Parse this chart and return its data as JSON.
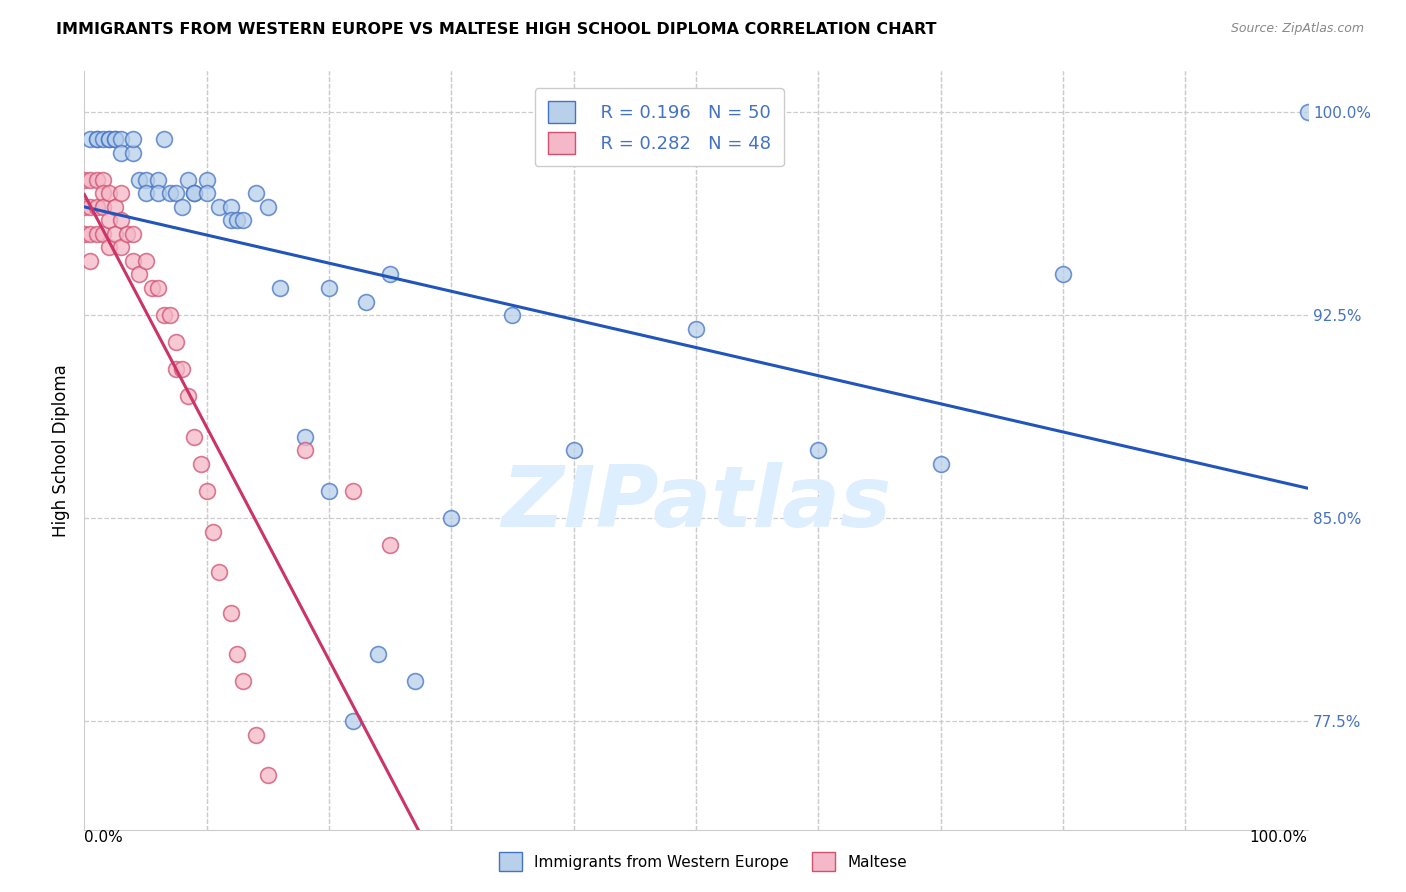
{
  "title": "IMMIGRANTS FROM WESTERN EUROPE VS MALTESE HIGH SCHOOL DIPLOMA CORRELATION CHART",
  "source": "Source: ZipAtlas.com",
  "ylabel": "High School Diploma",
  "xlim": [
    0.0,
    1.0
  ],
  "ylim": [
    0.735,
    1.015
  ],
  "ytick_vals": [
    0.775,
    0.85,
    0.925,
    1.0
  ],
  "ytick_labels": [
    "77.5%",
    "85.0%",
    "92.5%",
    "100.0%"
  ],
  "legend_blue_r": "R = 0.196",
  "legend_blue_n": "N = 50",
  "legend_pink_r": "R = 0.282",
  "legend_pink_n": "N = 48",
  "legend_blue_label": "Immigrants from Western Europe",
  "legend_pink_label": "Maltese",
  "blue_face_color": "#b8d0ea",
  "blue_edge_color": "#4472c4",
  "pink_face_color": "#f4b8c8",
  "pink_edge_color": "#d05070",
  "blue_trend_color": "#2255bb",
  "pink_trend_color": "#cc3366",
  "watermark_color": "#ddeeff",
  "blue_x": [
    0.005,
    0.01,
    0.01,
    0.015,
    0.02,
    0.02,
    0.025,
    0.025,
    0.03,
    0.03,
    0.04,
    0.04,
    0.045,
    0.05,
    0.05,
    0.06,
    0.06,
    0.065,
    0.07,
    0.075,
    0.08,
    0.085,
    0.09,
    0.09,
    0.1,
    0.1,
    0.11,
    0.12,
    0.12,
    0.125,
    0.13,
    0.14,
    0.15,
    0.16,
    0.18,
    0.2,
    0.2,
    0.22,
    0.23,
    0.24,
    0.25,
    0.27,
    0.3,
    0.35,
    0.4,
    0.5,
    0.6,
    0.7,
    0.8,
    1.0
  ],
  "blue_y": [
    0.99,
    0.99,
    0.99,
    0.99,
    0.99,
    0.99,
    0.99,
    0.99,
    0.99,
    0.985,
    0.985,
    0.99,
    0.975,
    0.975,
    0.97,
    0.975,
    0.97,
    0.99,
    0.97,
    0.97,
    0.965,
    0.975,
    0.97,
    0.97,
    0.975,
    0.97,
    0.965,
    0.965,
    0.96,
    0.96,
    0.96,
    0.97,
    0.965,
    0.935,
    0.88,
    0.86,
    0.935,
    0.775,
    0.93,
    0.8,
    0.94,
    0.79,
    0.85,
    0.925,
    0.875,
    0.92,
    0.875,
    0.87,
    0.94,
    1.0
  ],
  "pink_x": [
    0.0,
    0.0,
    0.0,
    0.005,
    0.005,
    0.005,
    0.005,
    0.01,
    0.01,
    0.01,
    0.015,
    0.015,
    0.015,
    0.015,
    0.02,
    0.02,
    0.02,
    0.025,
    0.025,
    0.03,
    0.03,
    0.03,
    0.035,
    0.04,
    0.04,
    0.045,
    0.05,
    0.055,
    0.06,
    0.065,
    0.07,
    0.075,
    0.075,
    0.08,
    0.085,
    0.09,
    0.095,
    0.1,
    0.105,
    0.11,
    0.12,
    0.125,
    0.13,
    0.14,
    0.15,
    0.18,
    0.22,
    0.25
  ],
  "pink_y": [
    0.975,
    0.965,
    0.955,
    0.975,
    0.965,
    0.955,
    0.945,
    0.975,
    0.965,
    0.955,
    0.975,
    0.97,
    0.965,
    0.955,
    0.97,
    0.96,
    0.95,
    0.965,
    0.955,
    0.97,
    0.96,
    0.95,
    0.955,
    0.955,
    0.945,
    0.94,
    0.945,
    0.935,
    0.935,
    0.925,
    0.925,
    0.915,
    0.905,
    0.905,
    0.895,
    0.88,
    0.87,
    0.86,
    0.845,
    0.83,
    0.815,
    0.8,
    0.79,
    0.77,
    0.755,
    0.875,
    0.86,
    0.84
  ]
}
